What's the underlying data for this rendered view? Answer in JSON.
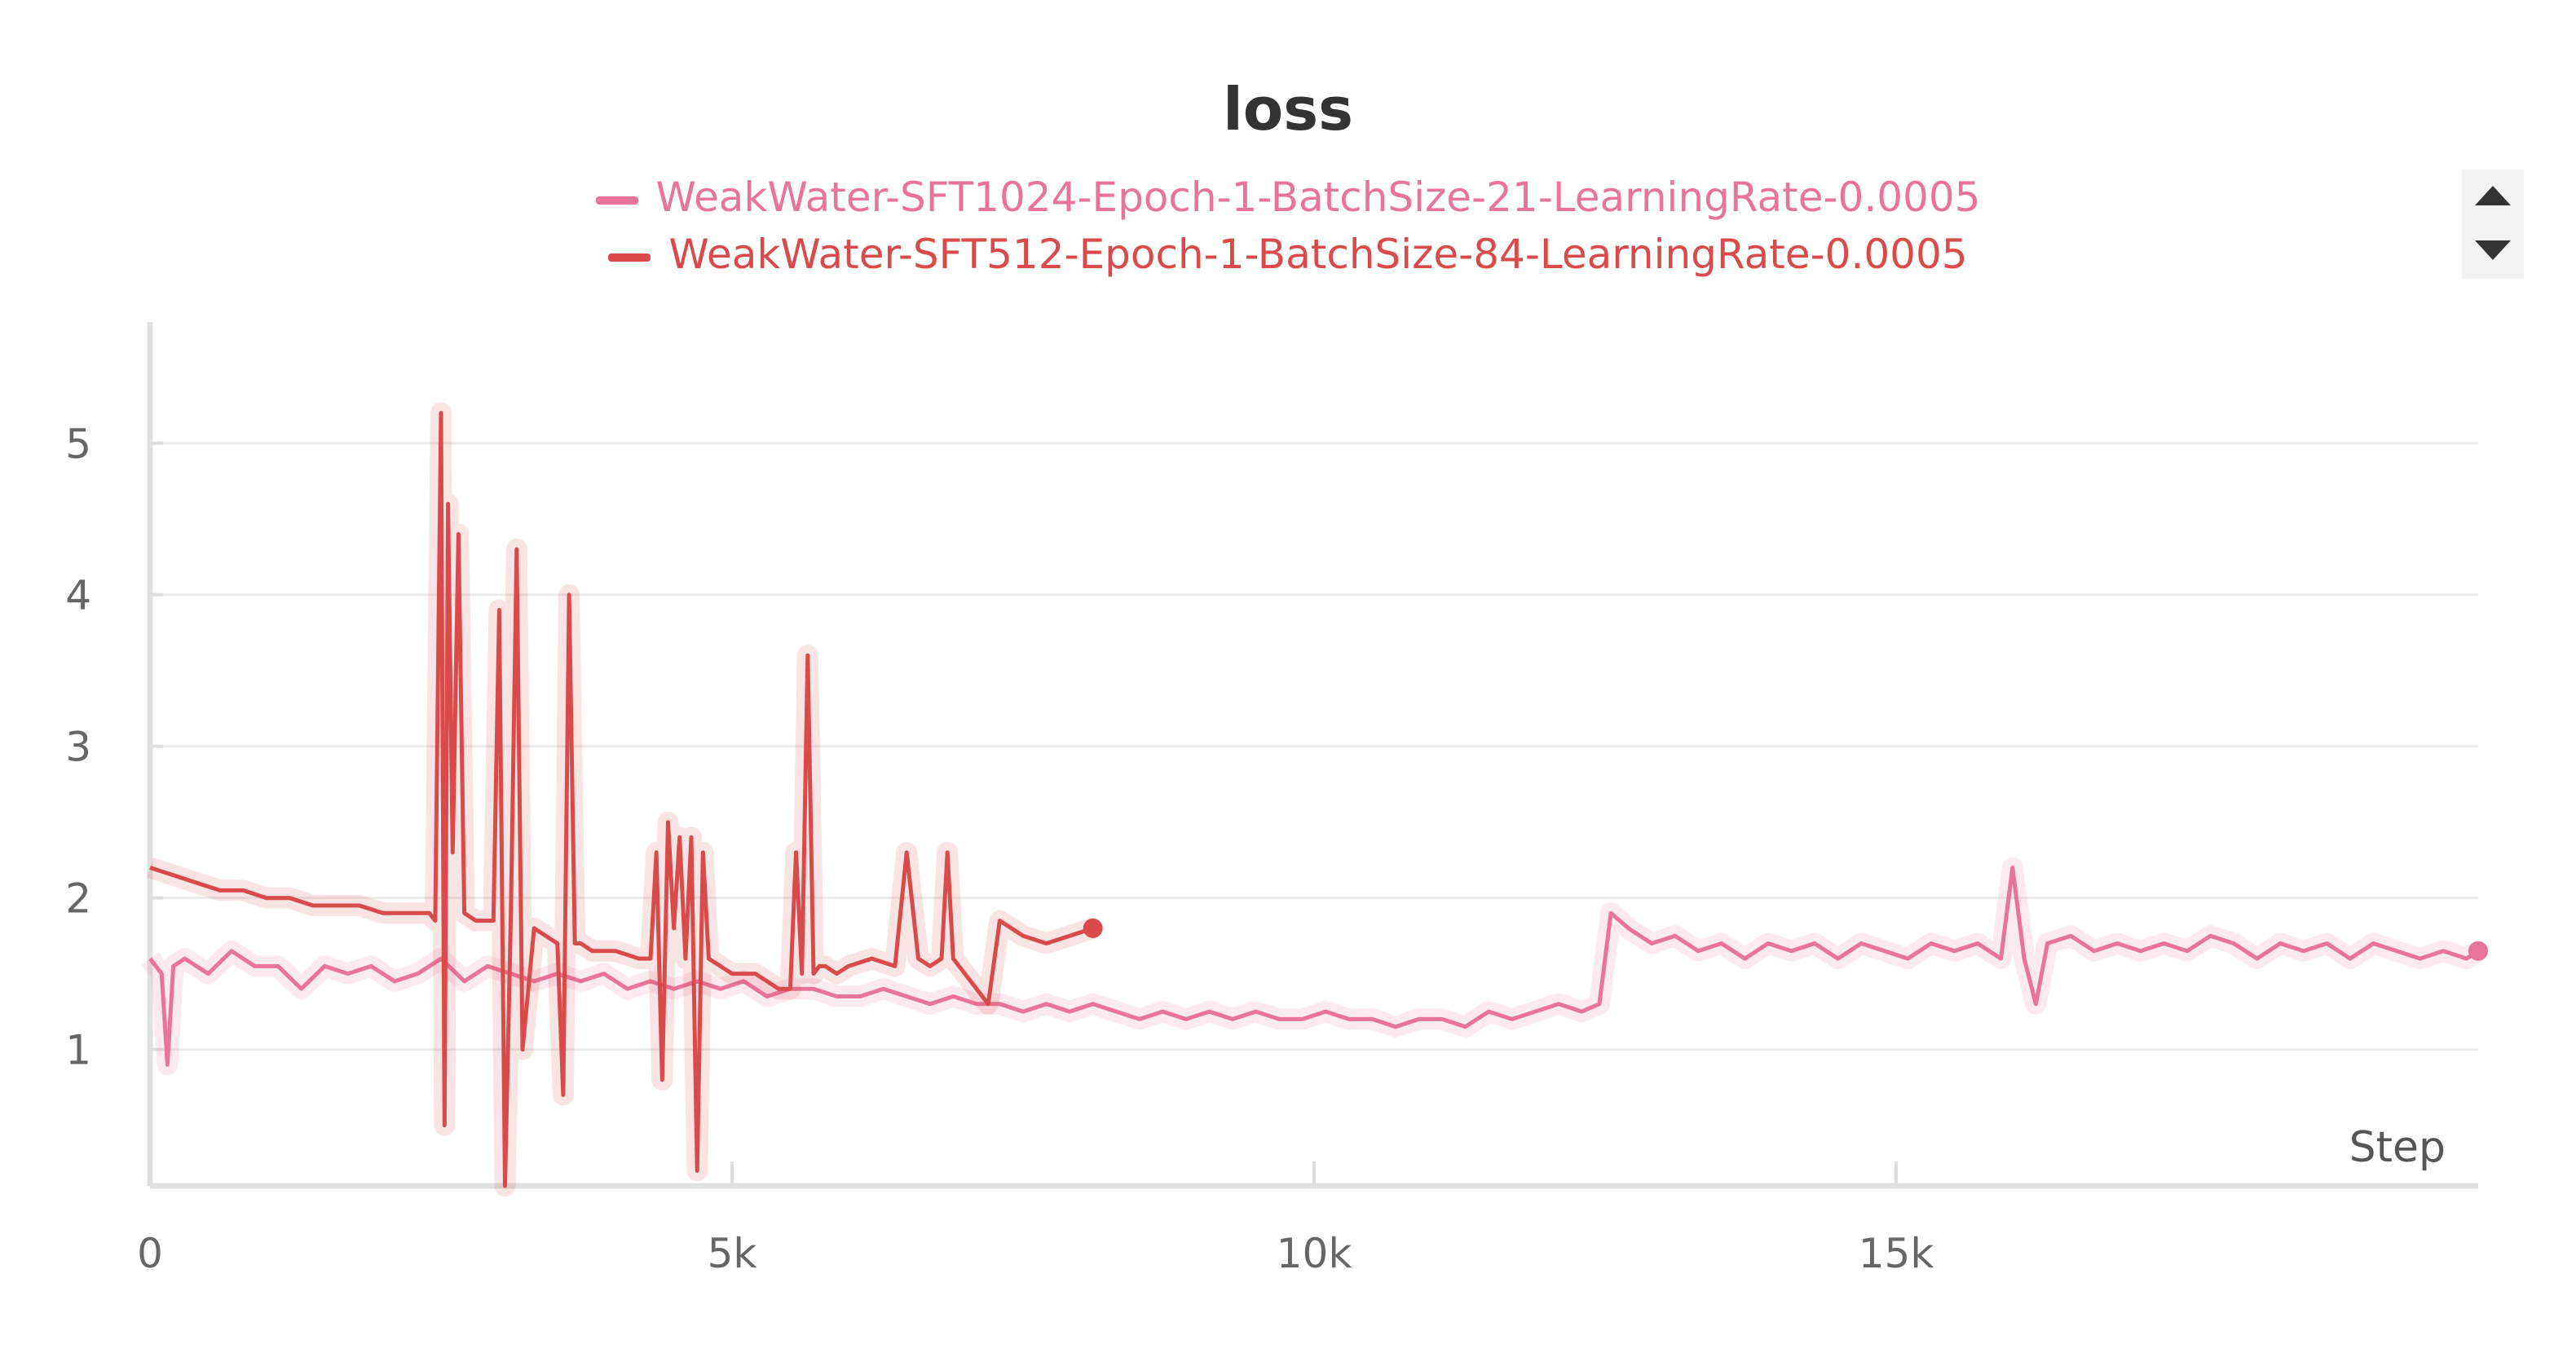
{
  "chart_data": {
    "type": "line",
    "title": "loss",
    "xlabel": "Step",
    "ylabel": "",
    "xlim": [
      0,
      20000
    ],
    "ylim": [
      0.1,
      5.8
    ],
    "x_ticks": [
      0,
      5000,
      10000,
      15000
    ],
    "x_tick_labels": [
      "0",
      "5k",
      "10k",
      "15k"
    ],
    "y_ticks": [
      1,
      2,
      3,
      4,
      5
    ],
    "y_tick_labels": [
      "1",
      "2",
      "3",
      "4",
      "5"
    ],
    "grid": true,
    "legend_position": "top-center",
    "series": [
      {
        "name": "WeakWater-SFT1024-Epoch-1-BatchSize-21-LearningRate-0.0005",
        "color": "#e8749b",
        "x": [
          0,
          100,
          150,
          200,
          300,
          500,
          700,
          900,
          1100,
          1300,
          1500,
          1700,
          1900,
          2100,
          2300,
          2500,
          2700,
          2900,
          3100,
          3300,
          3500,
          3700,
          3900,
          4100,
          4300,
          4500,
          4700,
          4900,
          5100,
          5300,
          5500,
          5700,
          5900,
          6100,
          6300,
          6500,
          6700,
          6900,
          7100,
          7300,
          7500,
          7700,
          7900,
          8100,
          8300,
          8500,
          8700,
          8900,
          9100,
          9300,
          9500,
          9700,
          9900,
          10100,
          10300,
          10500,
          10700,
          10900,
          11100,
          11300,
          11500,
          11700,
          11900,
          12100,
          12300,
          12450,
          12550,
          12700,
          12900,
          13100,
          13300,
          13500,
          13700,
          13900,
          14100,
          14300,
          14500,
          14700,
          14900,
          15100,
          15300,
          15500,
          15700,
          15900,
          16000,
          16100,
          16200,
          16300,
          16500,
          16700,
          16900,
          17100,
          17300,
          17500,
          17700,
          17900,
          18100,
          18300,
          18500,
          18700,
          18900,
          19100,
          19300,
          19500,
          19700,
          19900,
          20000
        ],
        "values": [
          1.6,
          1.5,
          0.9,
          1.55,
          1.6,
          1.5,
          1.65,
          1.55,
          1.55,
          1.4,
          1.55,
          1.5,
          1.55,
          1.45,
          1.5,
          1.6,
          1.45,
          1.55,
          1.5,
          1.45,
          1.5,
          1.45,
          1.5,
          1.4,
          1.45,
          1.4,
          1.45,
          1.4,
          1.45,
          1.35,
          1.4,
          1.4,
          1.35,
          1.35,
          1.4,
          1.35,
          1.3,
          1.35,
          1.3,
          1.3,
          1.25,
          1.3,
          1.25,
          1.3,
          1.25,
          1.2,
          1.25,
          1.2,
          1.25,
          1.2,
          1.25,
          1.2,
          1.2,
          1.25,
          1.2,
          1.2,
          1.15,
          1.2,
          1.2,
          1.15,
          1.25,
          1.2,
          1.25,
          1.3,
          1.25,
          1.3,
          1.9,
          1.8,
          1.7,
          1.75,
          1.65,
          1.7,
          1.6,
          1.7,
          1.65,
          1.7,
          1.6,
          1.7,
          1.65,
          1.6,
          1.7,
          1.65,
          1.7,
          1.6,
          2.2,
          1.6,
          1.3,
          1.7,
          1.75,
          1.65,
          1.7,
          1.65,
          1.7,
          1.65,
          1.75,
          1.7,
          1.6,
          1.7,
          1.65,
          1.7,
          1.6,
          1.7,
          1.65,
          1.6,
          1.65,
          1.6,
          1.65
        ]
      },
      {
        "name": "WeakWater-SFT512-Epoch-1-BatchSize-84-LearningRate-0.0005",
        "color": "#d94a4a",
        "x": [
          0,
          200,
          400,
          600,
          800,
          1000,
          1200,
          1400,
          1600,
          1800,
          2000,
          2200,
          2400,
          2450,
          2500,
          2530,
          2560,
          2600,
          2650,
          2700,
          2800,
          2950,
          3000,
          3050,
          3100,
          3150,
          3200,
          3300,
          3400,
          3500,
          3550,
          3600,
          3650,
          3700,
          3800,
          4000,
          4200,
          4300,
          4350,
          4400,
          4450,
          4500,
          4550,
          4600,
          4650,
          4700,
          4750,
          4800,
          4900,
          5000,
          5050,
          5100,
          5200,
          5300,
          5400,
          5500,
          5550,
          5600,
          5650,
          5700,
          5750,
          5800,
          5900,
          6000,
          6200,
          6400,
          6500,
          6600,
          6700,
          6800,
          6850,
          6900,
          7000,
          7100,
          7200,
          7300,
          7400,
          7500,
          7700,
          7900,
          8100
        ],
        "values": [
          2.2,
          2.15,
          2.1,
          2.05,
          2.05,
          2.0,
          2.0,
          1.95,
          1.95,
          1.95,
          1.9,
          1.9,
          1.9,
          1.85,
          5.2,
          0.5,
          4.6,
          2.3,
          4.4,
          1.9,
          1.85,
          1.85,
          3.9,
          0.1,
          1.9,
          4.3,
          1.0,
          1.8,
          1.75,
          1.7,
          0.7,
          4.0,
          1.7,
          1.7,
          1.65,
          1.65,
          1.6,
          1.6,
          2.3,
          0.8,
          2.5,
          1.8,
          2.4,
          1.6,
          2.4,
          0.2,
          2.3,
          1.6,
          1.55,
          1.5,
          1.5,
          1.5,
          1.5,
          1.45,
          1.4,
          1.4,
          2.3,
          1.5,
          3.6,
          1.5,
          1.55,
          1.55,
          1.5,
          1.55,
          1.6,
          1.55,
          2.3,
          1.6,
          1.55,
          1.6,
          2.3,
          1.6,
          1.5,
          1.4,
          1.3,
          1.85,
          1.8,
          1.75,
          1.7,
          1.75,
          1.8
        ]
      }
    ]
  }
}
